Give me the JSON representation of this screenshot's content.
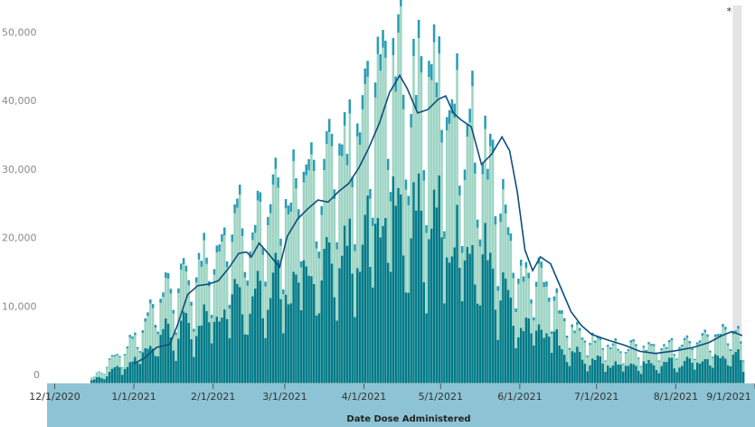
{
  "chart_data": {
    "type": "bar",
    "xlabel": "Date Dose Administered",
    "ylabel": "",
    "ylim": [
      0,
      56000
    ],
    "xlim": [
      "2020-11-28",
      "2021-09-01"
    ],
    "grid": false,
    "legend": "none",
    "annotation": "*",
    "annotation_date": "2021-08-24",
    "yticks": [
      {
        "value": 0,
        "label": "0"
      },
      {
        "value": 10000,
        "label": "10,000"
      },
      {
        "value": 20000,
        "label": "20,000"
      },
      {
        "value": 30000,
        "label": "30,000"
      },
      {
        "value": 40000,
        "label": "40,000"
      },
      {
        "value": 50000,
        "label": "50,000"
      }
    ],
    "xticks": [
      {
        "date": "2020-12-01",
        "label": "12/1/2020"
      },
      {
        "date": "2021-01-01",
        "label": "1/1/2021"
      },
      {
        "date": "2021-02-01",
        "label": "2/1/2021"
      },
      {
        "date": "2021-03-01",
        "label": "3/1/2021"
      },
      {
        "date": "2021-04-01",
        "label": "4/1/2021"
      },
      {
        "date": "2021-05-01",
        "label": "5/1/2021"
      },
      {
        "date": "2021-06-01",
        "label": "6/1/2021"
      },
      {
        "date": "2021-07-01",
        "label": "7/1/2021"
      },
      {
        "date": "2021-08-01",
        "label": "8/1/2021"
      },
      {
        "date": "2021-09-01",
        "label": "9/1/2021"
      }
    ],
    "series": [
      {
        "color": "#007a87"
      },
      {
        "color": "#9dd4c3"
      },
      {
        "color": "#2a9db4"
      },
      {
        "color": "#0e4e7c"
      }
    ],
    "total_profile": [
      [
        "2020-12-14",
        0
      ],
      [
        "2020-12-15",
        800
      ],
      [
        "2020-12-20",
        2500
      ],
      [
        "2020-12-24",
        4500
      ],
      [
        "2020-12-29",
        5500
      ],
      [
        "2021-01-04",
        8500
      ],
      [
        "2021-01-10",
        12000
      ],
      [
        "2021-01-15",
        14500
      ],
      [
        "2021-01-20",
        15500
      ],
      [
        "2021-01-25",
        17000
      ],
      [
        "2021-02-01",
        21000
      ],
      [
        "2021-02-08",
        24000
      ],
      [
        "2021-02-14",
        25000
      ],
      [
        "2021-02-20",
        25500
      ],
      [
        "2021-02-26",
        27000
      ],
      [
        "2021-03-05",
        30000
      ],
      [
        "2021-03-12",
        31500
      ],
      [
        "2021-03-20",
        33500
      ],
      [
        "2021-03-28",
        37000
      ],
      [
        "2021-04-05",
        43000
      ],
      [
        "2021-04-10",
        50000
      ],
      [
        "2021-04-15",
        47000
      ],
      [
        "2021-04-22",
        46000
      ],
      [
        "2021-04-30",
        45500
      ],
      [
        "2021-05-07",
        42000
      ],
      [
        "2021-05-14",
        37000
      ],
      [
        "2021-05-20",
        34000
      ],
      [
        "2021-05-26",
        25000
      ],
      [
        "2021-05-31",
        17000
      ],
      [
        "2021-06-05",
        18000
      ],
      [
        "2021-06-10",
        16000
      ],
      [
        "2021-06-16",
        12000
      ],
      [
        "2021-06-22",
        8000
      ],
      [
        "2021-07-01",
        6500
      ],
      [
        "2021-07-10",
        5500
      ],
      [
        "2021-07-20",
        5500
      ],
      [
        "2021-08-01",
        6000
      ],
      [
        "2021-08-10",
        6500
      ],
      [
        "2021-08-18",
        8000
      ],
      [
        "2021-08-24",
        9000
      ],
      [
        "2021-08-27",
        3000
      ]
    ],
    "moving_average": [
      [
        "2021-01-01",
        2900
      ],
      [
        "2021-01-05",
        3700
      ],
      [
        "2021-01-10",
        5300
      ],
      [
        "2021-01-15",
        5700
      ],
      [
        "2021-01-18",
        8500
      ],
      [
        "2021-01-22",
        13000
      ],
      [
        "2021-01-26",
        14300
      ],
      [
        "2021-01-30",
        14500
      ],
      [
        "2021-02-03",
        15000
      ],
      [
        "2021-02-07",
        16800
      ],
      [
        "2021-02-11",
        19000
      ],
      [
        "2021-02-14",
        19200
      ],
      [
        "2021-02-16",
        18500
      ],
      [
        "2021-02-19",
        20500
      ],
      [
        "2021-02-23",
        18800
      ],
      [
        "2021-02-27",
        17000
      ],
      [
        "2021-03-02",
        21500
      ],
      [
        "2021-03-06",
        24000
      ],
      [
        "2021-03-10",
        25500
      ],
      [
        "2021-03-14",
        26800
      ],
      [
        "2021-03-18",
        26500
      ],
      [
        "2021-03-22",
        28000
      ],
      [
        "2021-03-26",
        29200
      ],
      [
        "2021-03-30",
        31500
      ],
      [
        "2021-04-03",
        34500
      ],
      [
        "2021-04-07",
        38000
      ],
      [
        "2021-04-11",
        42500
      ],
      [
        "2021-04-15",
        45000
      ],
      [
        "2021-04-18",
        43000
      ],
      [
        "2021-04-22",
        39500
      ],
      [
        "2021-04-26",
        40000
      ],
      [
        "2021-04-30",
        41500
      ],
      [
        "2021-05-03",
        42000
      ],
      [
        "2021-05-06",
        39500
      ],
      [
        "2021-05-09",
        38500
      ],
      [
        "2021-05-13",
        37500
      ],
      [
        "2021-05-17",
        32000
      ],
      [
        "2021-05-21",
        33500
      ],
      [
        "2021-05-25",
        36000
      ],
      [
        "2021-05-28",
        34000
      ],
      [
        "2021-05-31",
        28000
      ],
      [
        "2021-06-03",
        19500
      ],
      [
        "2021-06-06",
        16500
      ],
      [
        "2021-06-09",
        18500
      ],
      [
        "2021-06-13",
        17500
      ],
      [
        "2021-06-17",
        14000
      ],
      [
        "2021-06-21",
        10500
      ],
      [
        "2021-06-25",
        8500
      ],
      [
        "2021-06-29",
        7200
      ],
      [
        "2021-07-05",
        6400
      ],
      [
        "2021-07-12",
        5600
      ],
      [
        "2021-07-18",
        4700
      ],
      [
        "2021-07-24",
        4400
      ],
      [
        "2021-08-01",
        4800
      ],
      [
        "2021-08-08",
        5300
      ],
      [
        "2021-08-14",
        6000
      ],
      [
        "2021-08-19",
        7000
      ],
      [
        "2021-08-23",
        7600
      ],
      [
        "2021-08-27",
        7000
      ]
    ]
  }
}
